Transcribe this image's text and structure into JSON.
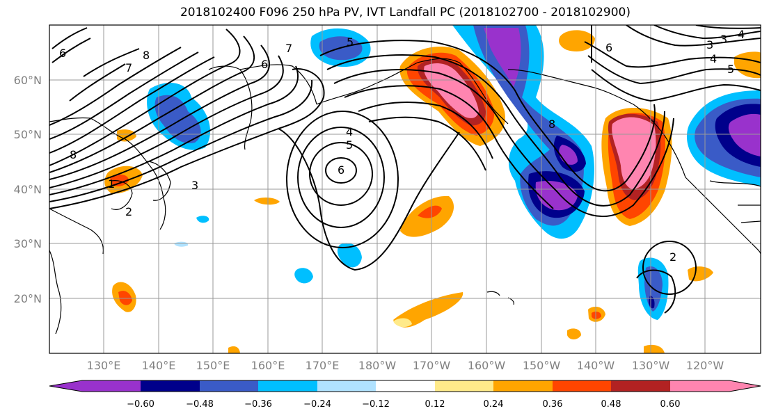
{
  "title": "2018102400 F096 250 hPa PV, IVT Landfall PC (2018102700 - 2018102900)",
  "lat_labels": [
    "60°N",
    "50°N",
    "40°N",
    "30°N",
    "20°N"
  ],
  "lon_labels": [
    "130°E",
    "140°E",
    "150°E",
    "160°E",
    "170°E",
    "180°W",
    "170°W",
    "160°W",
    "150°W",
    "140°W",
    "130°W",
    "120°W"
  ],
  "colorbar": {
    "ticks": [
      "−0.60",
      "−0.48",
      "−0.36",
      "−0.24",
      "−0.12",
      "0.12",
      "0.24",
      "0.36",
      "0.48",
      "0.60"
    ],
    "colors": [
      "#9932CC",
      "#00008B",
      "#3A5BC7",
      "#00BFFF",
      "#B0E2FF",
      "#FFFFFF",
      "#FFEA8A",
      "#FFA500",
      "#FF4500",
      "#B22222",
      "#FF85B0"
    ]
  },
  "contour_labels": {
    "a": "8",
    "b": "7",
    "c": "6",
    "d": "5",
    "e": "4",
    "f": "5",
    "g": "6",
    "h": "3",
    "i": "7",
    "j": "6",
    "k": "8",
    "l": "2",
    "m": "4",
    "n": "3",
    "o": "2",
    "p": "6",
    "q": "5",
    "r": "4",
    "s": "3",
    "t": "8",
    "u": "1"
  }
}
